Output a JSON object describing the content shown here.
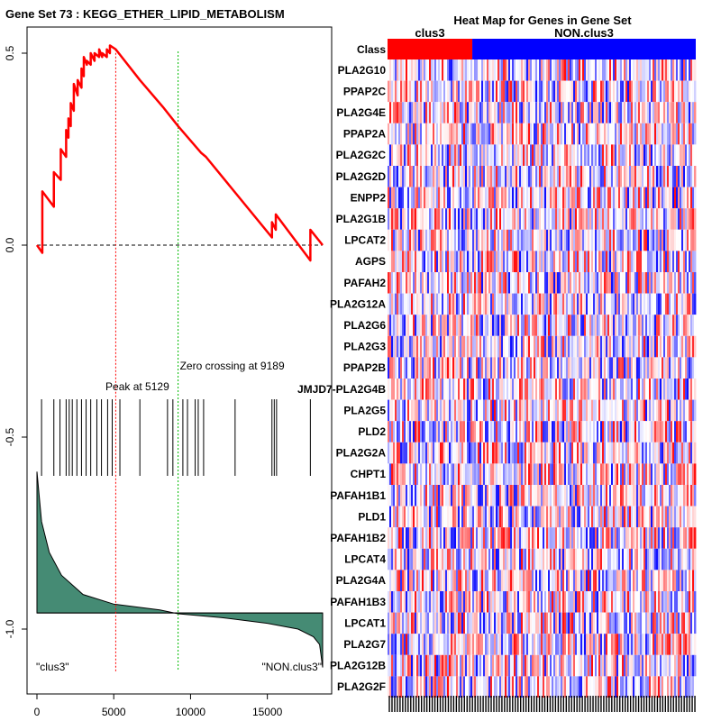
{
  "chart_data": [
    {
      "type": "line",
      "title": "Gene Set  73 : KEGG_ETHER_LIPID_METABOLISM",
      "series": [
        {
          "name": "running enrichment score",
          "color": "#ff0000",
          "x": [
            0,
            350,
            350,
            1100,
            1100,
            1550,
            1550,
            1900,
            1900,
            2050,
            2050,
            2200,
            2200,
            2400,
            2400,
            2650,
            2650,
            2900,
            2900,
            3050,
            3050,
            3250,
            3250,
            3500,
            3500,
            3750,
            3750,
            4050,
            4050,
            4250,
            4250,
            4550,
            4550,
            4750,
            4750,
            5129,
            6700,
            8200,
            9189,
            10700,
            11000,
            15300,
            15300,
            15550,
            15550,
            17800,
            17800,
            18600
          ],
          "y": [
            0.0,
            -0.02,
            0.14,
            0.1,
            0.19,
            0.17,
            0.25,
            0.23,
            0.3,
            0.28,
            0.33,
            0.31,
            0.37,
            0.35,
            0.42,
            0.39,
            0.43,
            0.41,
            0.46,
            0.44,
            0.49,
            0.47,
            0.48,
            0.47,
            0.5,
            0.48,
            0.5,
            0.49,
            0.51,
            0.49,
            0.5,
            0.49,
            0.51,
            0.5,
            0.52,
            0.51,
            0.43,
            0.36,
            0.31,
            0.24,
            0.23,
            0.02,
            0.06,
            0.04,
            0.08,
            -0.04,
            0.04,
            0.0
          ]
        },
        {
          "name": "ranked list metric",
          "color": "#458b74",
          "x": [
            0,
            300,
            800,
            1600,
            3000,
            5000,
            8000,
            9189,
            12000,
            15000,
            17000,
            18000,
            18400,
            18600
          ],
          "y": [
            -0.59,
            -0.72,
            -0.8,
            -0.86,
            -0.91,
            -0.935,
            -0.95,
            -0.96,
            -0.97,
            -0.985,
            -1.0,
            -1.02,
            -1.04,
            -1.1
          ]
        }
      ],
      "zero_line": 0.0,
      "hits_x": [
        300,
        1100,
        1500,
        1900,
        2100,
        2300,
        2600,
        2900,
        3200,
        3500,
        3900,
        4200,
        4600,
        4900,
        5400,
        6700,
        8500,
        8850,
        9500,
        9800,
        10300,
        10500,
        10850,
        12900,
        15300,
        15450,
        15600,
        17800
      ],
      "peak": {
        "x": 5129,
        "label": "Peak at 5129",
        "color": "#ff0000"
      },
      "zero_crossing": {
        "x": 9189,
        "label": "Zero crossing at 9189",
        "color": "#00bb00"
      },
      "left_label": "\"clus3\"",
      "right_label": "\"NON.clus3\"",
      "xlim": [
        0,
        18600
      ],
      "ylim": [
        -1.13,
        0.6
      ],
      "xticks": [
        0,
        5000,
        10000,
        15000
      ],
      "yticks": [
        0.5,
        0.0,
        -0.5,
        -1.0
      ],
      "ytick_labels": [
        "0.5",
        "0.0",
        "-0.5",
        "-1.0"
      ]
    },
    {
      "type": "heatmap",
      "title": "Heat Map for Genes in Gene Set",
      "class_row_label": "Class",
      "classes": [
        {
          "name": "clus3",
          "color": "#ff0000",
          "fraction": 0.275
        },
        {
          "name": "NON.clus3",
          "color": "#0000ff",
          "fraction": 0.725
        }
      ],
      "genes": [
        "PLA2G10",
        "PPAP2C",
        "PLA2G4E",
        "PPAP2A",
        "PLA2G2C",
        "PLA2G2D",
        "ENPP2",
        "PLA2G1B",
        "LPCAT2",
        "AGPS",
        "PAFAH2",
        "PLA2G12A",
        "PLA2G6",
        "PLA2G3",
        "PPAP2B",
        "JMJD7-PLA2G4B",
        "PLA2G5",
        "PLD2",
        "PLA2G2A",
        "CHPT1",
        "PAFAH1B1",
        "PLD1",
        "PAFAH1B2",
        "LPCAT4",
        "PLA2G4A",
        "PAFAH1B3",
        "LPCAT1",
        "PLA2G7",
        "PLA2G12B",
        "PLA2G2F"
      ]
    }
  ]
}
